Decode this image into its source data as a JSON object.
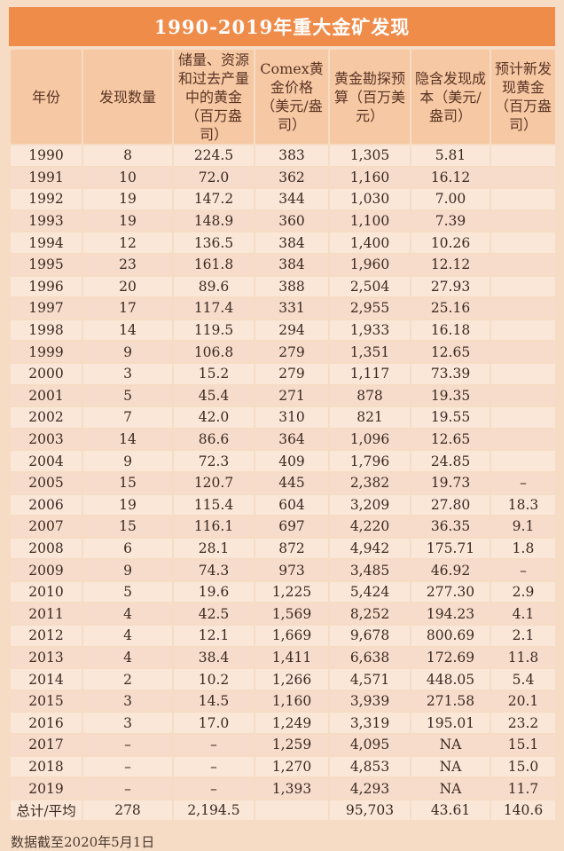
{
  "title": "1990-2019年重大金矿发现",
  "headers": [
    "年份",
    "发现数量",
    "储量、资源和过去产量中的黄金（百万盎司）",
    "Comex黄金价格（美元/盎司）",
    "黄金勘探预算（百万美元）",
    "隐含发现成本（美元/盎司）",
    "预计新发现黄金（百万盎司）"
  ],
  "rows": [
    [
      "1990",
      "8",
      "224.5",
      "383",
      "1,305",
      "5.81",
      ""
    ],
    [
      "1991",
      "10",
      "72.0",
      "362",
      "1,160",
      "16.12",
      ""
    ],
    [
      "1992",
      "19",
      "147.2",
      "344",
      "1,030",
      "7.00",
      ""
    ],
    [
      "1993",
      "19",
      "148.9",
      "360",
      "1,100",
      "7.39",
      ""
    ],
    [
      "1994",
      "12",
      "136.5",
      "384",
      "1,400",
      "10.26",
      ""
    ],
    [
      "1995",
      "23",
      "161.8",
      "384",
      "1,960",
      "12.12",
      ""
    ],
    [
      "1996",
      "20",
      "89.6",
      "388",
      "2,504",
      "27.93",
      ""
    ],
    [
      "1997",
      "17",
      "117.4",
      "331",
      "2,955",
      "25.16",
      ""
    ],
    [
      "1998",
      "14",
      "119.5",
      "294",
      "1,933",
      "16.18",
      ""
    ],
    [
      "1999",
      "9",
      "106.8",
      "279",
      "1,351",
      "12.65",
      ""
    ],
    [
      "2000",
      "3",
      "15.2",
      "279",
      "1,117",
      "73.39",
      ""
    ],
    [
      "2001",
      "5",
      "45.4",
      "271",
      "878",
      "19.35",
      ""
    ],
    [
      "2002",
      "7",
      "42.0",
      "310",
      "821",
      "19.55",
      ""
    ],
    [
      "2003",
      "14",
      "86.6",
      "364",
      "1,096",
      "12.65",
      ""
    ],
    [
      "2004",
      "9",
      "72.3",
      "409",
      "1,796",
      "24.85",
      ""
    ],
    [
      "2005",
      "15",
      "120.7",
      "445",
      "2,382",
      "19.73",
      "–"
    ],
    [
      "2006",
      "19",
      "115.4",
      "604",
      "3,209",
      "27.80",
      "18.3"
    ],
    [
      "2007",
      "15",
      "116.1",
      "697",
      "4,220",
      "36.35",
      "9.1"
    ],
    [
      "2008",
      "6",
      "28.1",
      "872",
      "4,942",
      "175.71",
      "1.8"
    ],
    [
      "2009",
      "9",
      "74.3",
      "973",
      "3,485",
      "46.92",
      "–"
    ],
    [
      "2010",
      "5",
      "19.6",
      "1,225",
      "5,424",
      "277.30",
      "2.9"
    ],
    [
      "2011",
      "4",
      "42.5",
      "1,569",
      "8,252",
      "194.23",
      "4.1"
    ],
    [
      "2012",
      "4",
      "12.1",
      "1,669",
      "9,678",
      "800.69",
      "2.1"
    ],
    [
      "2013",
      "4",
      "38.4",
      "1,411",
      "6,638",
      "172.69",
      "11.8"
    ],
    [
      "2014",
      "2",
      "10.2",
      "1,266",
      "4,571",
      "448.05",
      "5.4"
    ],
    [
      "2015",
      "3",
      "14.5",
      "1,160",
      "3,939",
      "271.58",
      "20.1"
    ],
    [
      "2016",
      "3",
      "17.0",
      "1,249",
      "3,319",
      "195.01",
      "23.2"
    ],
    [
      "2017",
      "–",
      "–",
      "1,259",
      "4,095",
      "NA",
      "15.1"
    ],
    [
      "2018",
      "–",
      "–",
      "1,270",
      "4,853",
      "NA",
      "15.0"
    ],
    [
      "2019",
      "–",
      "–",
      "1,393",
      "4,293",
      "NA",
      "11.7"
    ]
  ],
  "total_row": [
    "总计/平均",
    "278",
    "2,194.5",
    "",
    "95,703",
    "43.61",
    "140.6"
  ],
  "note": "数据截至2020年5月1日",
  "colors": {
    "title_bg": "#f08c4a",
    "header_bg": "#f6c9a4",
    "row_bg": "#fbe7d8",
    "row_alt_bg": "#f8dccb",
    "page_bg": "#f6dcc4"
  }
}
